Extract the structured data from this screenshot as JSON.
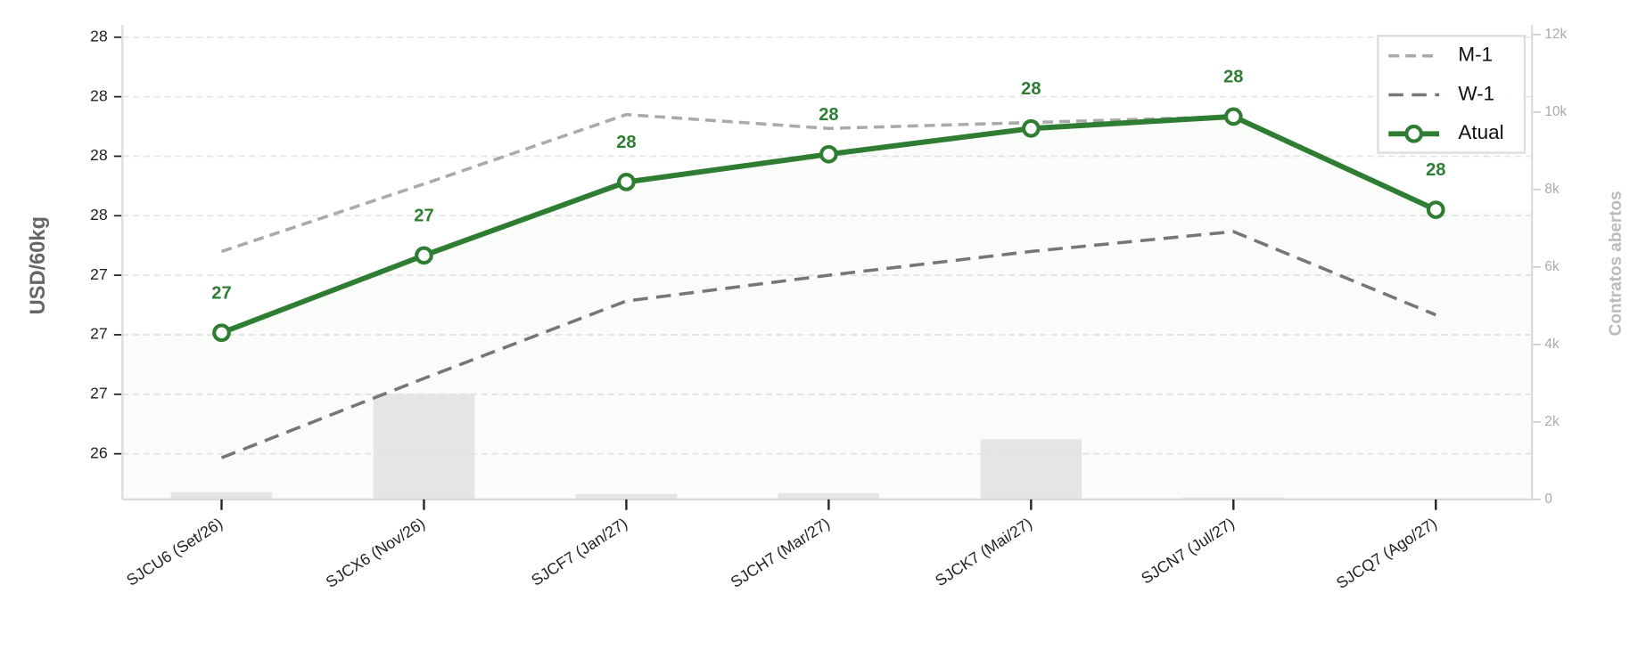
{
  "chart_data": {
    "type": "line",
    "ylabel": "USD/60kg",
    "y2label": "Contratos abertos",
    "categories": [
      "SJCU6 (Set/26)",
      "SJCX6 (Nov/26)",
      "SJCF7 (Jan/27)",
      "SJCH7 (Mar/27)",
      "SJCK7 (Mai/27)",
      "SJCN7 (Jul/27)",
      "SJCQ7 (Ago/27)"
    ],
    "series": [
      {
        "name": "M-1",
        "color": "#aaaaaa",
        "style": "dashed",
        "values": [
          27.42,
          27.76,
          28.11,
          28.04,
          28.07,
          28.1,
          null
        ]
      },
      {
        "name": "W-1",
        "color": "#777777",
        "style": "dashed",
        "values": [
          26.38,
          26.78,
          27.17,
          27.3,
          27.42,
          27.52,
          27.1
        ]
      },
      {
        "name": "Atual",
        "color": "#2e7d32",
        "style": "solid",
        "markers": true,
        "values": [
          27.01,
          27.4,
          27.77,
          27.91,
          28.04,
          28.1,
          27.63
        ],
        "value_labels": [
          "27",
          "27",
          "28",
          "28",
          "28",
          "28",
          "28"
        ]
      }
    ],
    "bars": {
      "axis": "y2",
      "color": "#e8e9e8",
      "values": [
        190,
        2720,
        140,
        160,
        1550,
        50,
        0
      ]
    },
    "ylim": [
      26.17,
      28.56
    ],
    "yticks": [
      {
        "value": 26.4,
        "label": "26"
      },
      {
        "value": 26.7,
        "label": "27"
      },
      {
        "value": 27.0,
        "label": "27"
      },
      {
        "value": 27.3,
        "label": "27"
      },
      {
        "value": 27.6,
        "label": "28"
      },
      {
        "value": 27.9,
        "label": "28"
      },
      {
        "value": 28.2,
        "label": "28"
      },
      {
        "value": 28.5,
        "label": "28"
      }
    ],
    "y2lim": [
      0,
      12240
    ],
    "y2ticks": [
      0,
      {
        "value": 2000,
        "label": "2k"
      },
      {
        "value": 4000,
        "label": "4k"
      },
      {
        "value": 6000,
        "label": "6k"
      },
      {
        "value": 8000,
        "label": "8k"
      },
      {
        "value": 10000,
        "label": "10k"
      },
      {
        "value": 12000,
        "label": "12k"
      }
    ],
    "grid": true,
    "legend": "upper right"
  }
}
